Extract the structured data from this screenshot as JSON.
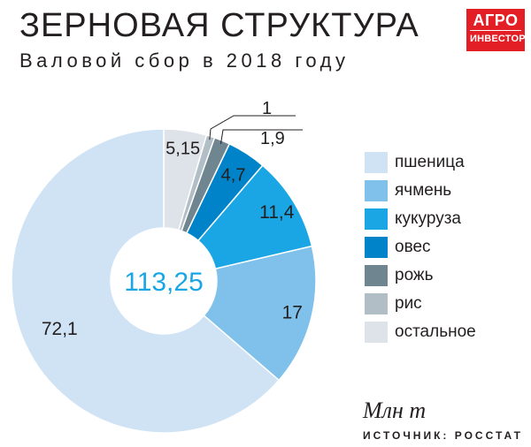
{
  "header": {
    "title": "ЗЕРНОВАЯ СТРУКТУРА",
    "subtitle": "Валовой сбор в 2018 году"
  },
  "logo": {
    "line1": "АГРО",
    "line2": "ИНВЕСТОР"
  },
  "chart_data": {
    "type": "pie",
    "subtype": "donut",
    "center_label": "113,25",
    "start_at": "top, clockwise",
    "legend_position": "right",
    "slices": [
      {
        "category": "пшеница",
        "value": 72.1,
        "label": "72,1",
        "color": "#cfe3f5"
      },
      {
        "category": "ячмень",
        "value": 17,
        "label": "17",
        "color": "#7fc1ea"
      },
      {
        "category": "кукуруза",
        "value": 11.4,
        "label": "11,4",
        "color": "#1aa6e4"
      },
      {
        "category": "овес",
        "value": 4.7,
        "label": "4,7",
        "color": "#0083c9"
      },
      {
        "category": "рожь",
        "value": 1.9,
        "label": "1,9",
        "color": "#6f8590"
      },
      {
        "category": "рис",
        "value": 1,
        "label": "1",
        "color": "#b2bec6"
      },
      {
        "category": "остальное",
        "value": 5.15,
        "label": "5,15",
        "color": "#dde3e8"
      }
    ],
    "order_clockwise_from_top": [
      "остальное",
      "рис",
      "рожь",
      "овес",
      "кукуруза",
      "ячмень",
      "пшеница"
    ]
  },
  "footer": {
    "unit": "Млн т",
    "source": "ИСТОЧНИК: РОССТАТ"
  }
}
